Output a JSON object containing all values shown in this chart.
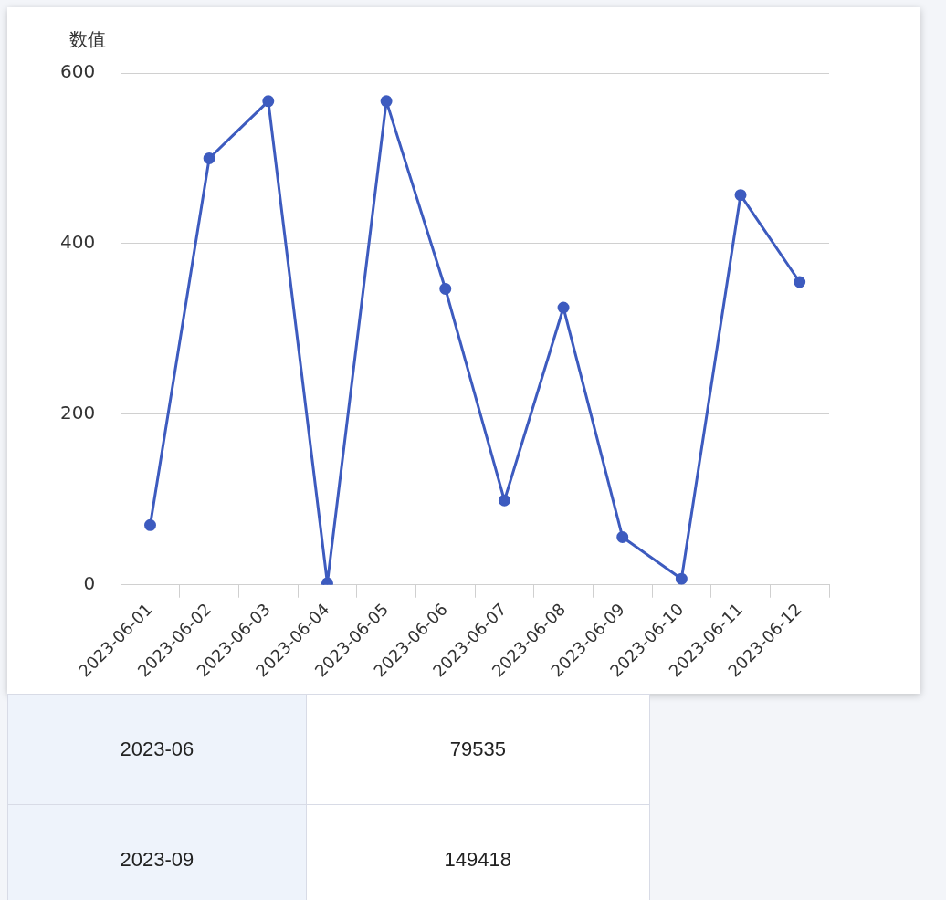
{
  "chart_data": {
    "type": "line",
    "ylabel": "数值",
    "categories": [
      "2023-06-01",
      "2023-06-02",
      "2023-06-03",
      "2023-06-04",
      "2023-06-05",
      "2023-06-06",
      "2023-06-07",
      "2023-06-08",
      "2023-06-09",
      "2023-06-10",
      "2023-06-11",
      "2023-06-12"
    ],
    "series": [
      {
        "color": "#3d5bbf",
        "values": [
          70,
          500,
          567,
          2,
          567,
          347,
          99,
          325,
          56,
          7,
          457,
          355
        ]
      }
    ],
    "ylim": [
      0,
      600
    ],
    "yticks": [
      0,
      200,
      400,
      600
    ],
    "grid": "y",
    "legend": false,
    "marker": "circle",
    "line_style": "solid",
    "annotations": [
      "2023-06",
      "79535",
      "2023-09",
      "149418"
    ]
  }
}
